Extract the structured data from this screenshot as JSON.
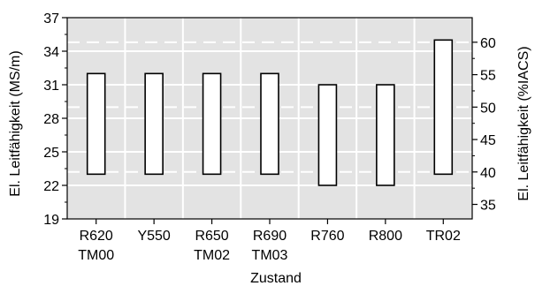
{
  "chart_data": {
    "type": "bar",
    "subtype": "floating-range",
    "categories": [
      {
        "line1": "R620",
        "line2": "TM00"
      },
      {
        "line1": "Y550",
        "line2": ""
      },
      {
        "line1": "R650",
        "line2": "TM02"
      },
      {
        "line1": "R690",
        "line2": "TM03"
      },
      {
        "line1": "R760",
        "line2": ""
      },
      {
        "line1": "R800",
        "line2": ""
      },
      {
        "line1": "TR02",
        "line2": ""
      }
    ],
    "ranges": [
      {
        "low": 23,
        "high": 32
      },
      {
        "low": 23,
        "high": 32
      },
      {
        "low": 23,
        "high": 32
      },
      {
        "low": 23,
        "high": 32
      },
      {
        "low": 22,
        "high": 31
      },
      {
        "low": 22,
        "high": 31
      },
      {
        "low": 23,
        "high": 35
      }
    ],
    "xlabel": "Zustand",
    "ylabel": "El. Leitfähigkeit (MS/m)",
    "ylabel_right": "El. Leitfähigkeit (%IACS)",
    "ylim": [
      19,
      37
    ],
    "yticks": [
      "19",
      "22",
      "25",
      "28",
      "31",
      "34",
      "37"
    ],
    "y2lim": [
      32.76,
      63.79
    ],
    "y2ticks": [
      "35",
      "40",
      "45",
      "50",
      "55",
      "60"
    ],
    "grid": true,
    "background_color": "#e3e3e3",
    "bar_fill": "#ffffff",
    "bar_stroke": "#000000",
    "grid_color": "#ffffff"
  }
}
